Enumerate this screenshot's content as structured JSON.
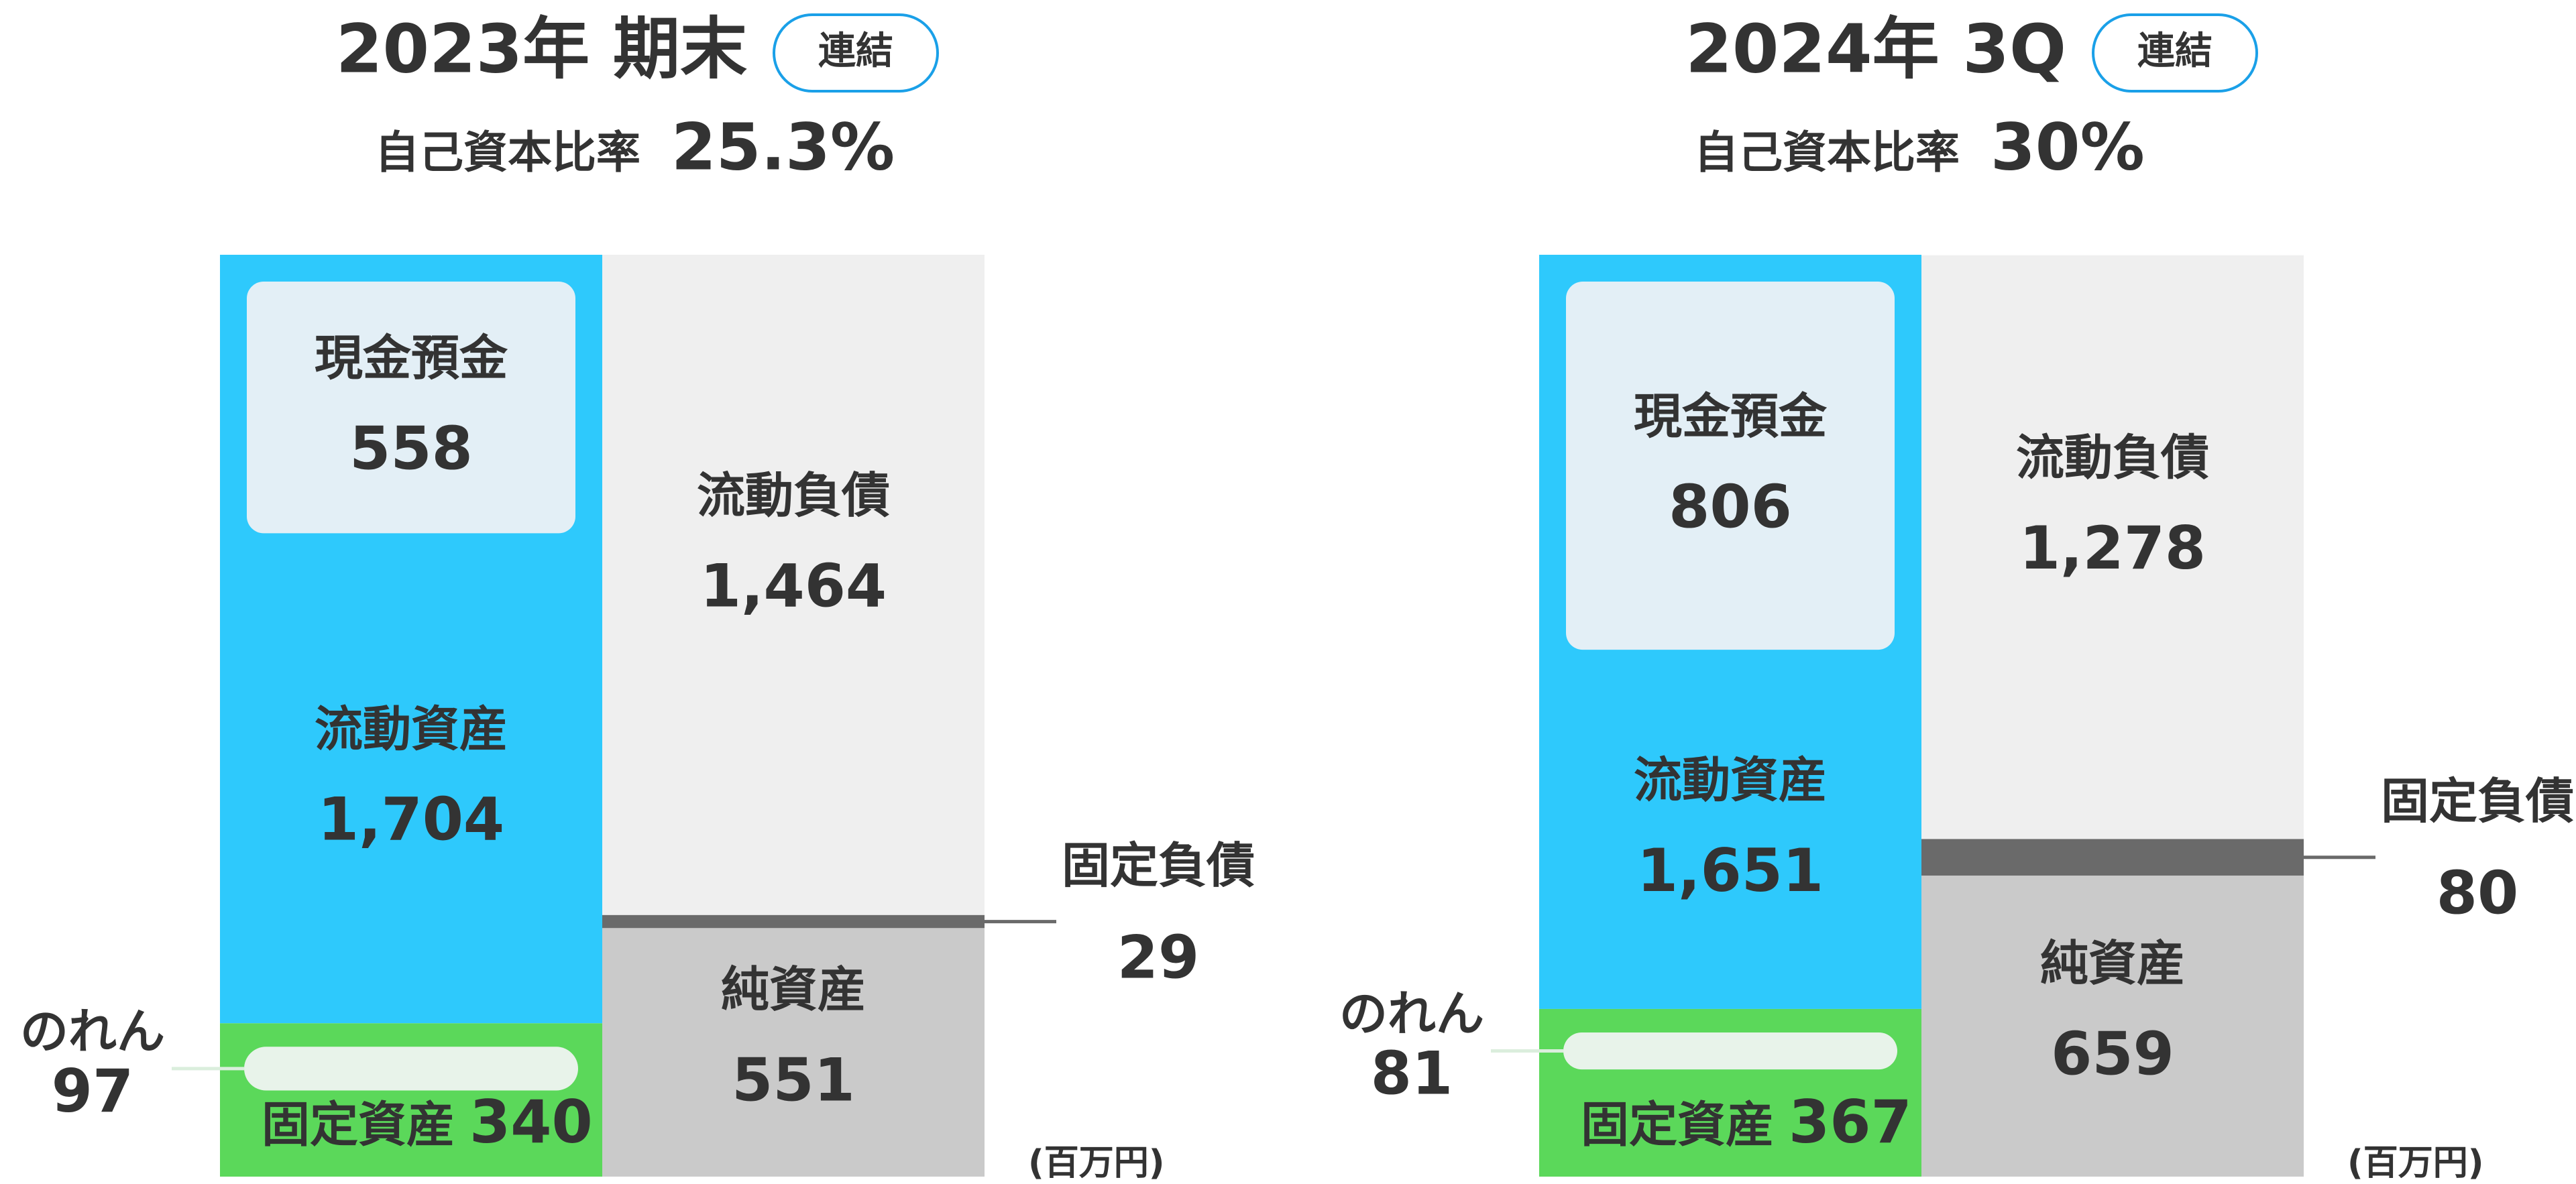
{
  "chart_data": [
    {
      "type": "balance-sheet",
      "title": "2023年 期末",
      "badge": "連結",
      "ratio_name": "自己資本比率",
      "ratio": {
        "value": 25.3,
        "label": "25.3%"
      },
      "unit": "(百万円)",
      "assets": {
        "current": {
          "name": "流動資産",
          "value": 1704,
          "value_label": "1,704",
          "color": "#2ec9fc"
        },
        "cash": {
          "name": "現金預金",
          "value": 558,
          "color": "#e3eff6"
        },
        "fixed": {
          "name": "固定資産",
          "value": 340,
          "color": "#5bd85a"
        },
        "goodwill": {
          "name": "のれん",
          "value": 97,
          "color": "#e8f3ea"
        }
      },
      "liabilities": {
        "current": {
          "name": "流動負債",
          "value": 1464,
          "value_label": "1,464",
          "color": "#efefef"
        },
        "fixed": {
          "name": "固定負債",
          "value": 29,
          "color": "#6a6a6a"
        },
        "equity": {
          "name": "純資産",
          "value": 551,
          "color": "#cacaca"
        }
      }
    },
    {
      "type": "balance-sheet",
      "title": "2024年 3Q",
      "badge": "連結",
      "ratio_name": "自己資本比率",
      "ratio": {
        "value": 30,
        "label": "30%"
      },
      "unit": "(百万円)",
      "assets": {
        "current": {
          "name": "流動資産",
          "value": 1651,
          "value_label": "1,651",
          "color": "#2ec9fc"
        },
        "cash": {
          "name": "現金預金",
          "value": 806,
          "color": "#e3eff6"
        },
        "fixed": {
          "name": "固定資産",
          "value": 367,
          "color": "#5bd85a"
        },
        "goodwill": {
          "name": "のれん",
          "value": 81,
          "color": "#e8f3ea"
        }
      },
      "liabilities": {
        "current": {
          "name": "流動負債",
          "value": 1278,
          "value_label": "1,278",
          "color": "#efefef"
        },
        "fixed": {
          "name": "固定負債",
          "value": 80,
          "color": "#6a6a6a"
        },
        "equity": {
          "name": "純資産",
          "value": 659,
          "color": "#cacaca"
        }
      }
    }
  ]
}
